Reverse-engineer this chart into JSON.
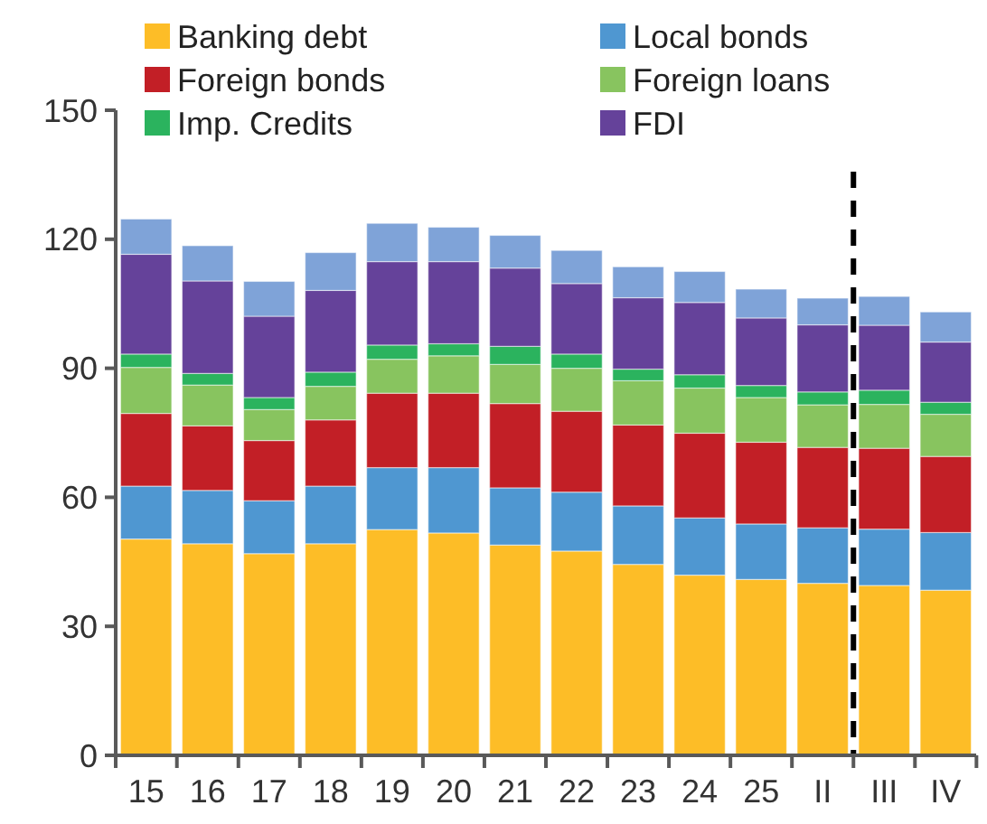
{
  "chart_data": {
    "type": "bar",
    "stacked": true,
    "categories": [
      "15",
      "16",
      "17",
      "18",
      "19",
      "20",
      "21",
      "22",
      "23",
      "24",
      "25",
      "II",
      "III",
      "IV"
    ],
    "ylim": [
      0,
      150
    ],
    "yticks": [
      0,
      30,
      60,
      90,
      120,
      150
    ],
    "legend": "top",
    "grid": false,
    "series": [
      {
        "name": "Banking debt",
        "color": "#fdbd27",
        "values": [
          50.3,
          49.2,
          46.9,
          49.2,
          52.5,
          51.7,
          48.9,
          47.5,
          44.4,
          41.9,
          40.9,
          40.0,
          39.5,
          38.4
        ]
      },
      {
        "name": "Local bonds",
        "color": "#4f97d1",
        "values": [
          12.3,
          12.4,
          12.3,
          13.4,
          14.4,
          15.2,
          13.3,
          13.7,
          13.6,
          13.3,
          12.9,
          12.9,
          13.1,
          13.4
        ]
      },
      {
        "name": "Foreign bonds",
        "color": "#c21f26",
        "values": [
          16.9,
          15.0,
          14.0,
          15.4,
          17.3,
          17.3,
          19.6,
          18.8,
          18.8,
          19.7,
          19.0,
          18.7,
          18.8,
          17.7
        ]
      },
      {
        "name": "Foreign loans",
        "color": "#88c45f",
        "values": [
          10.7,
          9.5,
          7.2,
          7.8,
          7.9,
          8.7,
          9.1,
          10.0,
          10.3,
          10.5,
          10.4,
          9.9,
          10.2,
          9.8
        ]
      },
      {
        "name": "Imp. Credits",
        "color": "#2bb35e",
        "values": [
          3.1,
          2.7,
          2.8,
          3.3,
          3.3,
          2.8,
          4.2,
          3.3,
          2.7,
          3.1,
          2.8,
          3.0,
          3.3,
          2.8
        ]
      },
      {
        "name": "FDI",
        "color": "#65429a",
        "values": [
          23.2,
          21.5,
          18.9,
          19.0,
          19.4,
          19.1,
          18.2,
          16.4,
          16.6,
          16.8,
          15.7,
          15.6,
          15.1,
          14.0
        ]
      },
      {
        "color": "#7fa3d8",
        "values": [
          8.2,
          8.2,
          8.1,
          8.8,
          8.9,
          8.0,
          7.6,
          7.7,
          7.2,
          7.2,
          6.7,
          6.2,
          6.7,
          7.0
        ]
      }
    ]
  }
}
